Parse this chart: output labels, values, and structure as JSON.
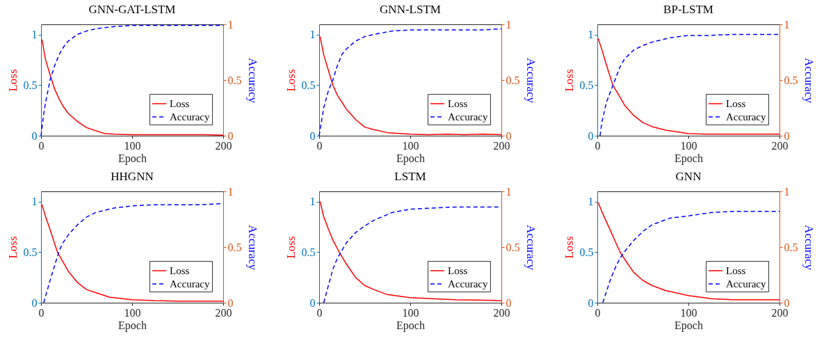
{
  "chart_data": [
    {
      "type": "line",
      "title": "GNN-GAT-LSTM",
      "xlabel": "Epoch",
      "ylabel": "Loss",
      "y2label": "Accuracy",
      "xlim": [
        0,
        200
      ],
      "xticks": [
        0,
        100,
        200
      ],
      "ylim": [
        0,
        1.1
      ],
      "yticks": [
        0,
        0.5,
        1
      ],
      "y2lim": [
        0,
        1
      ],
      "y2ticks": [
        0,
        0.5,
        1
      ],
      "legend": "bottom right",
      "series": [
        {
          "name": "Loss",
          "color": "#ff0000",
          "line_style": "solid",
          "x": [
            1,
            5,
            10,
            15,
            20,
            25,
            30,
            40,
            50,
            60,
            70,
            80,
            100,
            120,
            140,
            160,
            180,
            200
          ],
          "values": [
            0.95,
            0.75,
            0.6,
            0.46,
            0.36,
            0.28,
            0.22,
            0.14,
            0.08,
            0.05,
            0.02,
            0.015,
            0.01,
            0.01,
            0.01,
            0.01,
            0.01,
            0.005
          ]
        },
        {
          "name": "Accuracy",
          "color": "#0000ff",
          "line_style": "dashed",
          "axis": "y2",
          "x": [
            0,
            3,
            5,
            10,
            15,
            20,
            25,
            30,
            40,
            50,
            60,
            80,
            100,
            120,
            140,
            160,
            180,
            200
          ],
          "values": [
            0,
            0.2,
            0.3,
            0.5,
            0.63,
            0.73,
            0.8,
            0.85,
            0.91,
            0.94,
            0.96,
            0.98,
            0.99,
            0.99,
            0.99,
            0.99,
            0.99,
            0.99
          ]
        }
      ]
    },
    {
      "type": "line",
      "title": "GNN-LSTM",
      "xlabel": "Epoch",
      "ylabel": "Loss",
      "y2label": "Accuracy",
      "xlim": [
        0,
        200
      ],
      "xticks": [
        0,
        100,
        200
      ],
      "ylim": [
        0,
        1.1
      ],
      "yticks": [
        0,
        0.5,
        1
      ],
      "y2lim": [
        0,
        1
      ],
      "y2ticks": [
        0,
        0.5,
        1
      ],
      "legend": "bottom right",
      "series": [
        {
          "name": "Loss",
          "color": "#ff0000",
          "line_style": "solid",
          "x": [
            1,
            5,
            10,
            15,
            20,
            25,
            30,
            40,
            50,
            60,
            75,
            100,
            120,
            140,
            160,
            180,
            200
          ],
          "values": [
            0.98,
            0.8,
            0.65,
            0.5,
            0.4,
            0.33,
            0.26,
            0.16,
            0.085,
            0.06,
            0.03,
            0.015,
            0.01,
            0.015,
            0.01,
            0.015,
            0.01
          ]
        },
        {
          "name": "Accuracy",
          "color": "#0000ff",
          "line_style": "dashed",
          "axis": "y2",
          "x": [
            0,
            3,
            5,
            10,
            15,
            20,
            25,
            30,
            40,
            50,
            60,
            80,
            100,
            120,
            140,
            160,
            180,
            200
          ],
          "values": [
            0,
            0.15,
            0.25,
            0.4,
            0.5,
            0.63,
            0.73,
            0.78,
            0.85,
            0.89,
            0.91,
            0.94,
            0.95,
            0.95,
            0.95,
            0.95,
            0.95,
            0.96
          ]
        }
      ]
    },
    {
      "type": "line",
      "title": "BP-LSTM",
      "xlabel": "Epoch",
      "ylabel": "Loss",
      "y2label": "Accuracy",
      "xlim": [
        0,
        200
      ],
      "xticks": [
        0,
        100,
        200
      ],
      "ylim": [
        0,
        1.1
      ],
      "yticks": [
        0,
        0.5,
        1
      ],
      "y2lim": [
        0,
        1
      ],
      "y2ticks": [
        0,
        0.5,
        1
      ],
      "legend": "bottom right",
      "series": [
        {
          "name": "Loss",
          "color": "#ff0000",
          "line_style": "solid",
          "x": [
            1,
            5,
            10,
            17,
            25,
            30,
            40,
            50,
            60,
            75,
            100,
            120,
            140,
            160,
            180,
            200
          ],
          "values": [
            0.96,
            0.85,
            0.7,
            0.5,
            0.38,
            0.3,
            0.2,
            0.13,
            0.09,
            0.055,
            0.02,
            0.015,
            0.015,
            0.015,
            0.015,
            0.015
          ]
        },
        {
          "name": "Accuracy",
          "color": "#0000ff",
          "line_style": "dashed",
          "axis": "y2",
          "x": [
            3,
            5,
            10,
            17,
            25,
            30,
            40,
            50,
            60,
            80,
            100,
            120,
            150,
            180,
            200
          ],
          "values": [
            0,
            0.12,
            0.3,
            0.45,
            0.62,
            0.69,
            0.77,
            0.81,
            0.84,
            0.88,
            0.9,
            0.9,
            0.91,
            0.91,
            0.91
          ]
        }
      ]
    },
    {
      "type": "line",
      "title": "HHGNN",
      "xlabel": "Epoch",
      "ylabel": "Loss",
      "y2label": "Accuracy",
      "xlim": [
        0,
        200
      ],
      "xticks": [
        0,
        100,
        200
      ],
      "ylim": [
        0,
        1.1
      ],
      "yticks": [
        0,
        0.5,
        1
      ],
      "y2lim": [
        0,
        1
      ],
      "y2ticks": [
        0,
        0.5,
        1
      ],
      "legend": "bottom right",
      "series": [
        {
          "name": "Loss",
          "color": "#ff0000",
          "line_style": "solid",
          "x": [
            1,
            5,
            10,
            18,
            25,
            30,
            40,
            50,
            60,
            75,
            100,
            125,
            150,
            175,
            200
          ],
          "values": [
            0.97,
            0.85,
            0.72,
            0.5,
            0.39,
            0.31,
            0.2,
            0.13,
            0.1,
            0.055,
            0.03,
            0.02,
            0.015,
            0.015,
            0.015
          ]
        },
        {
          "name": "Accuracy",
          "color": "#0000ff",
          "line_style": "dashed",
          "axis": "y2",
          "x": [
            3,
            5,
            10,
            20,
            25,
            30,
            40,
            50,
            60,
            80,
            100,
            125,
            150,
            175,
            200
          ],
          "values": [
            0,
            0.06,
            0.2,
            0.47,
            0.55,
            0.61,
            0.7,
            0.77,
            0.81,
            0.85,
            0.87,
            0.88,
            0.88,
            0.88,
            0.89
          ]
        }
      ]
    },
    {
      "type": "line",
      "title": "LSTM",
      "xlabel": "Epoch",
      "ylabel": "Loss",
      "y2label": "Accuracy",
      "xlim": [
        0,
        200
      ],
      "xticks": [
        0,
        100,
        200
      ],
      "ylim": [
        0,
        1.1
      ],
      "yticks": [
        0,
        0.5,
        1
      ],
      "y2lim": [
        0,
        1
      ],
      "y2ticks": [
        0,
        0.5,
        1
      ],
      "legend": "bottom right",
      "series": [
        {
          "name": "Loss",
          "color": "#ff0000",
          "line_style": "solid",
          "x": [
            1,
            5,
            10,
            15,
            22,
            30,
            40,
            50,
            60,
            75,
            100,
            125,
            150,
            175,
            200
          ],
          "values": [
            1,
            0.85,
            0.73,
            0.62,
            0.5,
            0.38,
            0.25,
            0.17,
            0.13,
            0.08,
            0.05,
            0.04,
            0.03,
            0.025,
            0.02
          ]
        },
        {
          "name": "Accuracy",
          "color": "#0000ff",
          "line_style": "dashed",
          "axis": "y2",
          "x": [
            5,
            10,
            15,
            20,
            25,
            30,
            40,
            50,
            60,
            80,
            100,
            125,
            150,
            175,
            200
          ],
          "values": [
            0,
            0.15,
            0.3,
            0.4,
            0.47,
            0.54,
            0.63,
            0.69,
            0.74,
            0.81,
            0.84,
            0.85,
            0.86,
            0.86,
            0.86
          ]
        }
      ]
    },
    {
      "type": "line",
      "title": "GNN",
      "xlabel": "Epoch",
      "ylabel": "Loss",
      "y2label": "Accuracy",
      "xlim": [
        0,
        200
      ],
      "xticks": [
        0,
        100,
        200
      ],
      "ylim": [
        0,
        1.1
      ],
      "yticks": [
        0,
        0.5,
        1
      ],
      "y2lim": [
        0,
        1
      ],
      "y2ticks": [
        0,
        0.5,
        1
      ],
      "legend": "bottom right",
      "series": [
        {
          "name": "Loss",
          "color": "#ff0000",
          "line_style": "solid",
          "x": [
            1,
            5,
            10,
            15,
            20,
            25,
            30,
            40,
            50,
            60,
            75,
            100,
            125,
            150,
            175,
            200
          ],
          "values": [
            0.99,
            0.9,
            0.8,
            0.7,
            0.6,
            0.5,
            0.43,
            0.3,
            0.22,
            0.17,
            0.12,
            0.07,
            0.04,
            0.03,
            0.03,
            0.03
          ]
        },
        {
          "name": "Accuracy",
          "color": "#0000ff",
          "line_style": "dashed",
          "axis": "y2",
          "x": [
            6,
            10,
            15,
            20,
            25,
            30,
            40,
            50,
            60,
            80,
            100,
            125,
            150,
            175,
            200
          ],
          "values": [
            0,
            0.1,
            0.22,
            0.32,
            0.4,
            0.46,
            0.56,
            0.64,
            0.7,
            0.76,
            0.78,
            0.81,
            0.82,
            0.82,
            0.82
          ]
        }
      ]
    }
  ]
}
